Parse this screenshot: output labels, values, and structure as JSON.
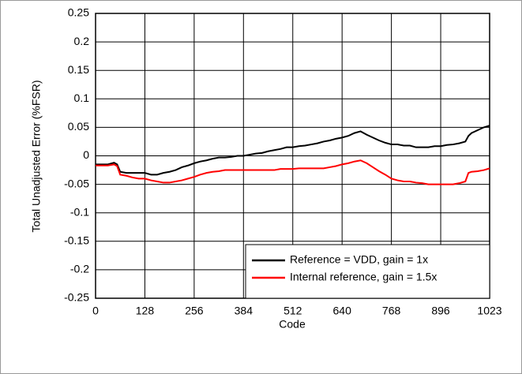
{
  "chart_data": {
    "type": "line",
    "xlabel": "Code",
    "ylabel": "Total Unadjusted Error (%FSR)",
    "x": [
      0,
      16,
      32,
      48,
      56,
      64,
      80,
      96,
      112,
      128,
      144,
      160,
      176,
      192,
      208,
      224,
      240,
      256,
      272,
      288,
      304,
      320,
      336,
      352,
      368,
      384,
      400,
      416,
      432,
      448,
      464,
      480,
      496,
      512,
      528,
      544,
      560,
      576,
      592,
      608,
      624,
      640,
      656,
      672,
      688,
      704,
      720,
      736,
      752,
      768,
      784,
      800,
      816,
      832,
      848,
      864,
      880,
      896,
      912,
      928,
      944,
      960,
      968,
      976,
      992,
      1008,
      1023
    ],
    "series": [
      {
        "name": "Reference = VDD, gain = 1x",
        "color": "#000000",
        "values": [
          -0.015,
          -0.015,
          -0.015,
          -0.012,
          -0.015,
          -0.028,
          -0.03,
          -0.03,
          -0.03,
          -0.03,
          -0.033,
          -0.033,
          -0.03,
          -0.028,
          -0.025,
          -0.02,
          -0.017,
          -0.013,
          -0.01,
          -0.008,
          -0.005,
          -0.003,
          -0.003,
          -0.002,
          0,
          0,
          0.002,
          0.004,
          0.005,
          0.008,
          0.01,
          0.012,
          0.015,
          0.015,
          0.017,
          0.018,
          0.02,
          0.022,
          0.025,
          0.027,
          0.03,
          0.032,
          0.035,
          0.04,
          0.043,
          0.037,
          0.032,
          0.027,
          0.023,
          0.02,
          0.02,
          0.018,
          0.018,
          0.015,
          0.015,
          0.015,
          0.017,
          0.017,
          0.019,
          0.02,
          0.022,
          0.025,
          0.035,
          0.04,
          0.045,
          0.05,
          0.053
        ]
      },
      {
        "name": "Internal reference, gain = 1.5x",
        "color": "#ff0000",
        "values": [
          -0.017,
          -0.017,
          -0.017,
          -0.015,
          -0.018,
          -0.033,
          -0.035,
          -0.038,
          -0.04,
          -0.04,
          -0.043,
          -0.045,
          -0.047,
          -0.047,
          -0.045,
          -0.043,
          -0.04,
          -0.037,
          -0.033,
          -0.03,
          -0.028,
          -0.027,
          -0.025,
          -0.025,
          -0.025,
          -0.025,
          -0.025,
          -0.025,
          -0.025,
          -0.025,
          -0.025,
          -0.023,
          -0.023,
          -0.023,
          -0.022,
          -0.022,
          -0.022,
          -0.022,
          -0.022,
          -0.02,
          -0.018,
          -0.015,
          -0.013,
          -0.01,
          -0.008,
          -0.013,
          -0.02,
          -0.027,
          -0.033,
          -0.04,
          -0.043,
          -0.045,
          -0.045,
          -0.047,
          -0.048,
          -0.05,
          -0.05,
          -0.05,
          -0.05,
          -0.05,
          -0.048,
          -0.045,
          -0.03,
          -0.028,
          -0.027,
          -0.025,
          -0.022
        ]
      }
    ],
    "xlim": [
      0,
      1023
    ],
    "xticks": [
      0,
      128,
      256,
      384,
      512,
      640,
      768,
      896,
      1023
    ],
    "ylim": [
      -0.25,
      0.25
    ],
    "yticks": [
      0.25,
      0.2,
      0.15,
      0.1,
      0.05,
      0,
      -0.05,
      -0.1,
      -0.15,
      -0.2,
      -0.25
    ],
    "grid": true,
    "legend": "lower right"
  }
}
